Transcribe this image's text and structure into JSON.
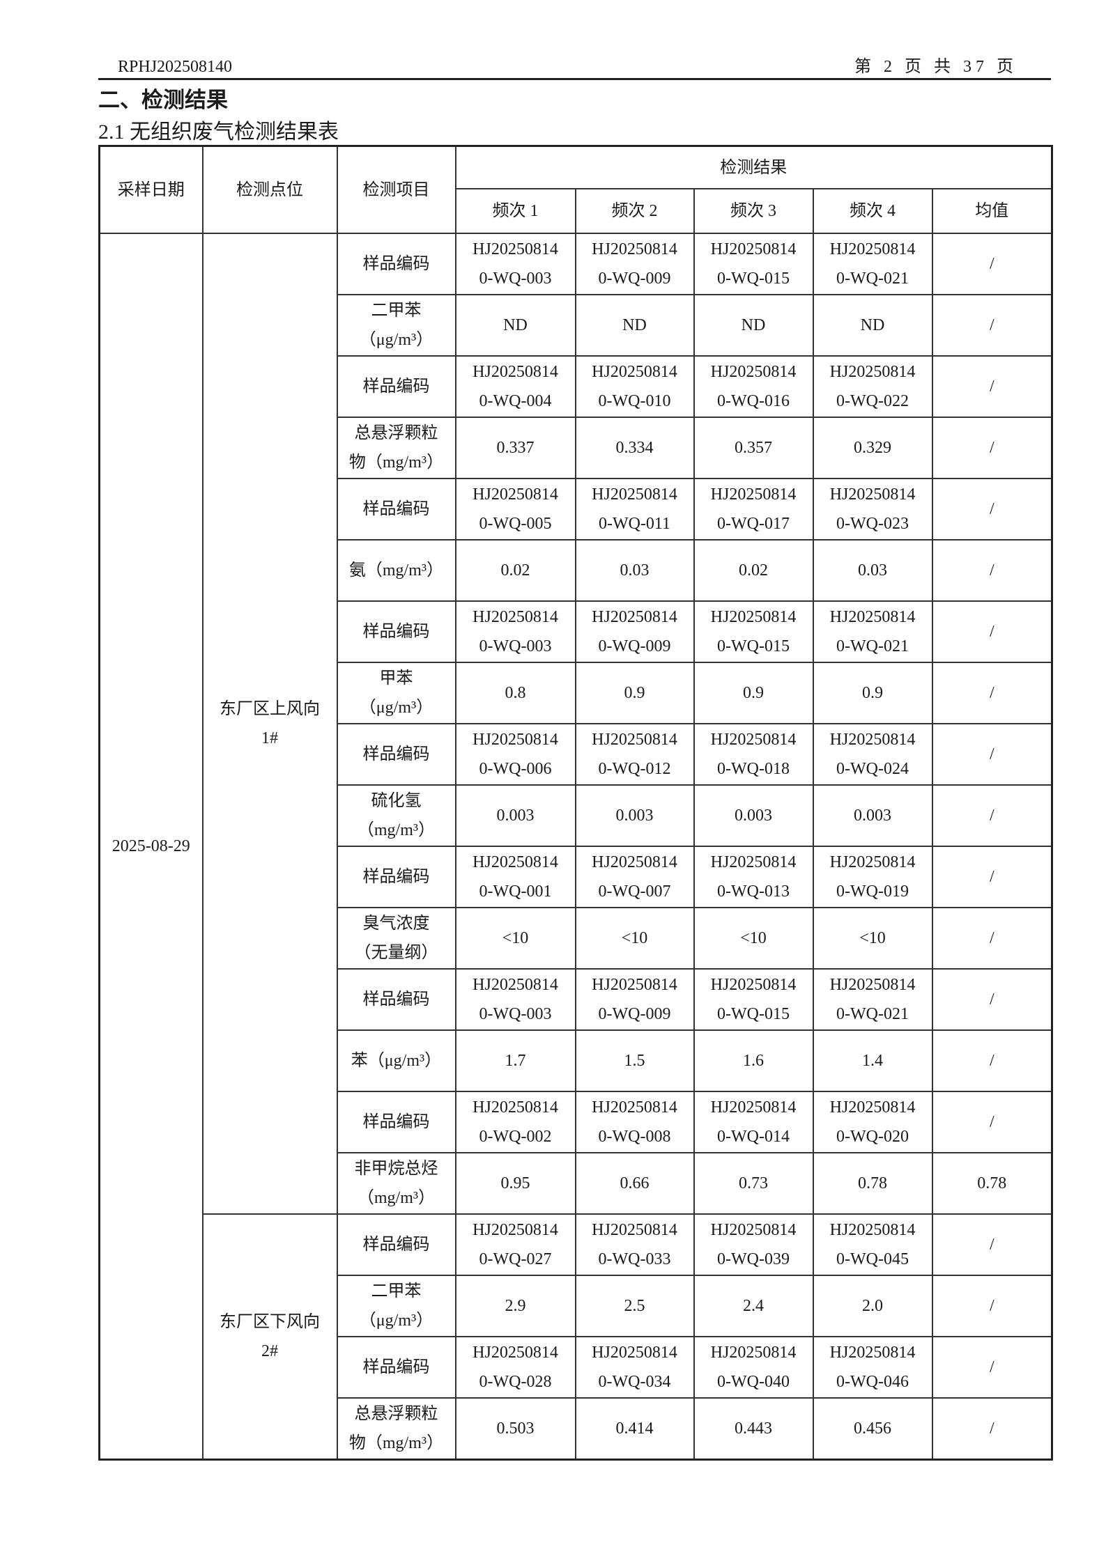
{
  "header": {
    "report_no": "RPHJ202508140",
    "page": "第 2 页 共 37 页"
  },
  "section_title": "二、检测结果",
  "table_title": "2.1  无组织废气检测结果表",
  "table": {
    "columns": {
      "date": "采样日期",
      "site": "检测点位",
      "item": "检测项目",
      "results": "检测结果",
      "freq": [
        "频次 1",
        "频次 2",
        "频次 3",
        "频次 4",
        "均值"
      ]
    },
    "date": "2025-08-29",
    "sites": [
      {
        "name": [
          "东厂区上风向",
          "1#"
        ],
        "rows": [
          {
            "item": [
              "样品编码"
            ],
            "values": [
              [
                "HJ20250814",
                "0-WQ-003"
              ],
              [
                "HJ20250814",
                "0-WQ-009"
              ],
              [
                "HJ20250814",
                "0-WQ-015"
              ],
              [
                "HJ20250814",
                "0-WQ-021"
              ],
              [
                "/"
              ]
            ]
          },
          {
            "item": [
              "二甲苯",
              "（μg/m³）"
            ],
            "values": [
              [
                "ND"
              ],
              [
                "ND"
              ],
              [
                "ND"
              ],
              [
                "ND"
              ],
              [
                "/"
              ]
            ]
          },
          {
            "item": [
              "样品编码"
            ],
            "values": [
              [
                "HJ20250814",
                "0-WQ-004"
              ],
              [
                "HJ20250814",
                "0-WQ-010"
              ],
              [
                "HJ20250814",
                "0-WQ-016"
              ],
              [
                "HJ20250814",
                "0-WQ-022"
              ],
              [
                "/"
              ]
            ]
          },
          {
            "item": [
              "总悬浮颗粒",
              "物（mg/m³）"
            ],
            "values": [
              [
                "0.337"
              ],
              [
                "0.334"
              ],
              [
                "0.357"
              ],
              [
                "0.329"
              ],
              [
                "/"
              ]
            ]
          },
          {
            "item": [
              "样品编码"
            ],
            "values": [
              [
                "HJ20250814",
                "0-WQ-005"
              ],
              [
                "HJ20250814",
                "0-WQ-011"
              ],
              [
                "HJ20250814",
                "0-WQ-017"
              ],
              [
                "HJ20250814",
                "0-WQ-023"
              ],
              [
                "/"
              ]
            ]
          },
          {
            "item": [
              "氨（mg/m³）"
            ],
            "values": [
              [
                "0.02"
              ],
              [
                "0.03"
              ],
              [
                "0.02"
              ],
              [
                "0.03"
              ],
              [
                "/"
              ]
            ],
            "short": true
          },
          {
            "item": [
              "样品编码"
            ],
            "values": [
              [
                "HJ20250814",
                "0-WQ-003"
              ],
              [
                "HJ20250814",
                "0-WQ-009"
              ],
              [
                "HJ20250814",
                "0-WQ-015"
              ],
              [
                "HJ20250814",
                "0-WQ-021"
              ],
              [
                "/"
              ]
            ]
          },
          {
            "item": [
              "甲苯",
              "（μg/m³）"
            ],
            "values": [
              [
                "0.8"
              ],
              [
                "0.9"
              ],
              [
                "0.9"
              ],
              [
                "0.9"
              ],
              [
                "/"
              ]
            ]
          },
          {
            "item": [
              "样品编码"
            ],
            "values": [
              [
                "HJ20250814",
                "0-WQ-006"
              ],
              [
                "HJ20250814",
                "0-WQ-012"
              ],
              [
                "HJ20250814",
                "0-WQ-018"
              ],
              [
                "HJ20250814",
                "0-WQ-024"
              ],
              [
                "/"
              ]
            ]
          },
          {
            "item": [
              "硫化氢",
              "（mg/m³）"
            ],
            "values": [
              [
                "0.003"
              ],
              [
                "0.003"
              ],
              [
                "0.003"
              ],
              [
                "0.003"
              ],
              [
                "/"
              ]
            ]
          },
          {
            "item": [
              "样品编码"
            ],
            "values": [
              [
                "HJ20250814",
                "0-WQ-001"
              ],
              [
                "HJ20250814",
                "0-WQ-007"
              ],
              [
                "HJ20250814",
                "0-WQ-013"
              ],
              [
                "HJ20250814",
                "0-WQ-019"
              ],
              [
                "/"
              ]
            ]
          },
          {
            "item": [
              "臭气浓度",
              "（无量纲）"
            ],
            "values": [
              [
                "<10"
              ],
              [
                "<10"
              ],
              [
                "<10"
              ],
              [
                "<10"
              ],
              [
                "/"
              ]
            ]
          },
          {
            "item": [
              "样品编码"
            ],
            "values": [
              [
                "HJ20250814",
                "0-WQ-003"
              ],
              [
                "HJ20250814",
                "0-WQ-009"
              ],
              [
                "HJ20250814",
                "0-WQ-015"
              ],
              [
                "HJ20250814",
                "0-WQ-021"
              ],
              [
                "/"
              ]
            ]
          },
          {
            "item": [
              "苯（μg/m³）"
            ],
            "values": [
              [
                "1.7"
              ],
              [
                "1.5"
              ],
              [
                "1.6"
              ],
              [
                "1.4"
              ],
              [
                "/"
              ]
            ],
            "short": true
          },
          {
            "item": [
              "样品编码"
            ],
            "values": [
              [
                "HJ20250814",
                "0-WQ-002"
              ],
              [
                "HJ20250814",
                "0-WQ-008"
              ],
              [
                "HJ20250814",
                "0-WQ-014"
              ],
              [
                "HJ20250814",
                "0-WQ-020"
              ],
              [
                "/"
              ]
            ]
          },
          {
            "item": [
              "非甲烷总烃",
              "（mg/m³）"
            ],
            "values": [
              [
                "0.95"
              ],
              [
                "0.66"
              ],
              [
                "0.73"
              ],
              [
                "0.78"
              ],
              [
                "0.78"
              ]
            ]
          }
        ]
      },
      {
        "name": [
          "东厂区下风向",
          "2#"
        ],
        "rows": [
          {
            "item": [
              "样品编码"
            ],
            "values": [
              [
                "HJ20250814",
                "0-WQ-027"
              ],
              [
                "HJ20250814",
                "0-WQ-033"
              ],
              [
                "HJ20250814",
                "0-WQ-039"
              ],
              [
                "HJ20250814",
                "0-WQ-045"
              ],
              [
                "/"
              ]
            ]
          },
          {
            "item": [
              "二甲苯",
              "（μg/m³）"
            ],
            "values": [
              [
                "2.9"
              ],
              [
                "2.5"
              ],
              [
                "2.4"
              ],
              [
                "2.0"
              ],
              [
                "/"
              ]
            ]
          },
          {
            "item": [
              "样品编码"
            ],
            "values": [
              [
                "HJ20250814",
                "0-WQ-028"
              ],
              [
                "HJ20250814",
                "0-WQ-034"
              ],
              [
                "HJ20250814",
                "0-WQ-040"
              ],
              [
                "HJ20250814",
                "0-WQ-046"
              ],
              [
                "/"
              ]
            ]
          },
          {
            "item": [
              "总悬浮颗粒",
              "物（mg/m³）"
            ],
            "values": [
              [
                "0.503"
              ],
              [
                "0.414"
              ],
              [
                "0.443"
              ],
              [
                "0.456"
              ],
              [
                "/"
              ]
            ]
          }
        ]
      }
    ]
  }
}
